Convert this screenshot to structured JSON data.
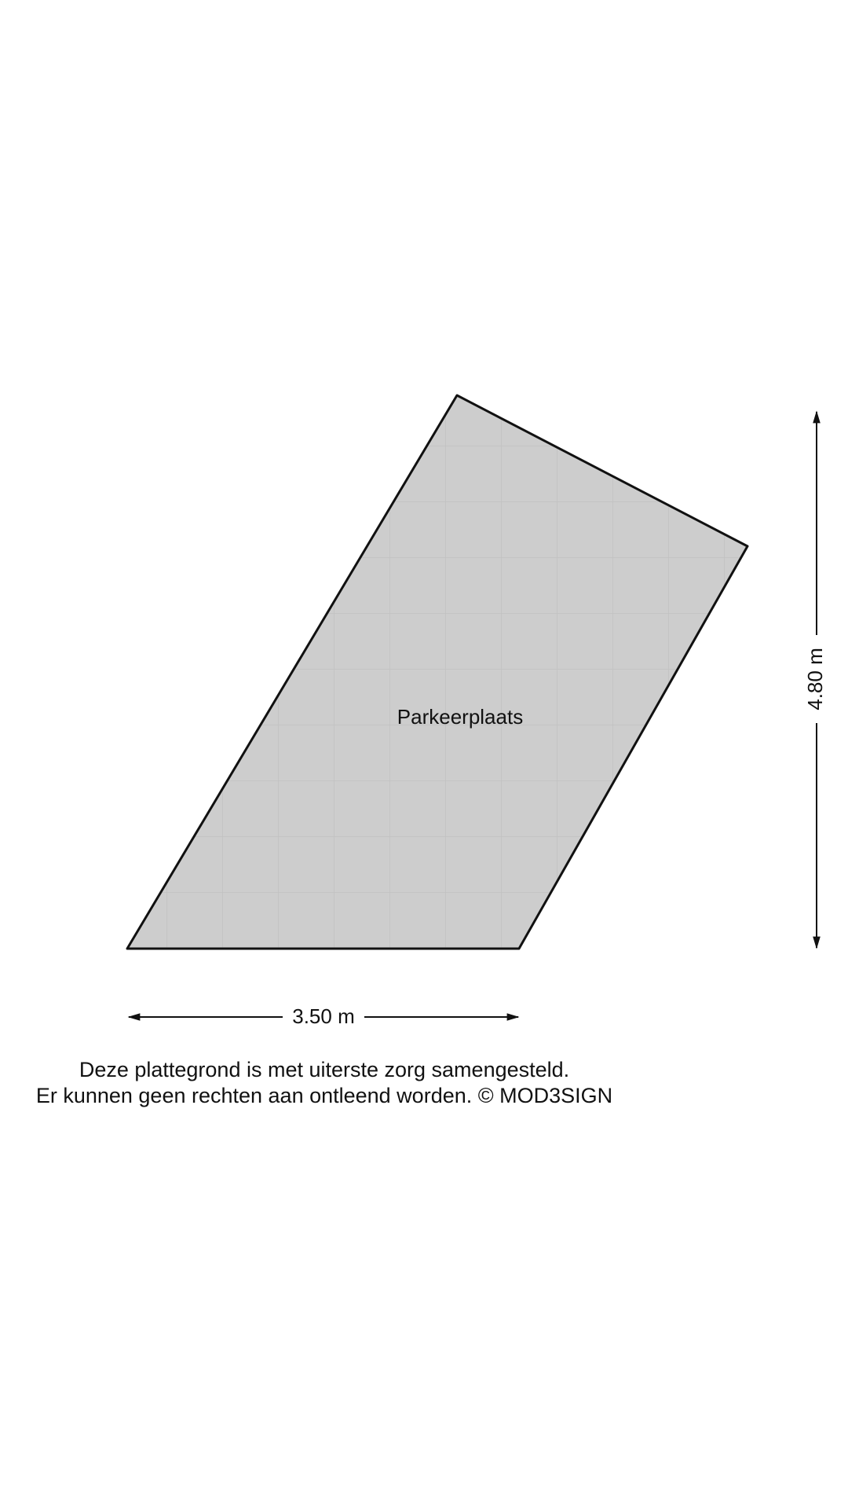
{
  "room": {
    "label": "Parkeerplaats"
  },
  "dimensions": {
    "width": "3.50 m",
    "height": "4.80 m"
  },
  "disclaimer": {
    "lines": [
      "Deze plattegrond is met uiterste zorg samengesteld.",
      "Er kunnen geen rechten aan ontleend worden. © MOD3SIGN"
    ]
  }
}
